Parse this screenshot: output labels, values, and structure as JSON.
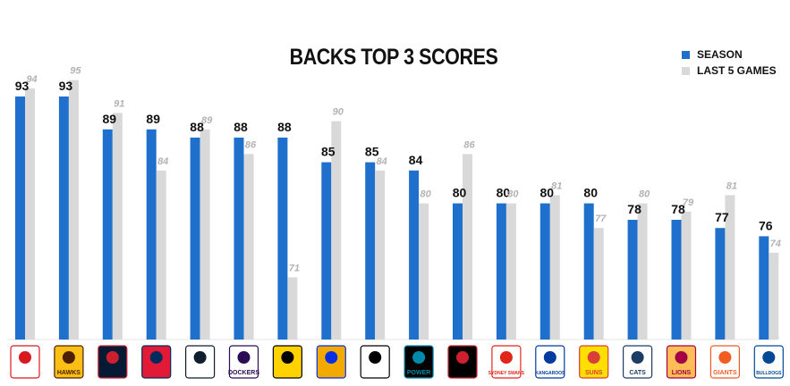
{
  "chart_data": {
    "type": "bar",
    "title": "BACKS TOP 3 SCORES",
    "categories": [
      "St Kilda",
      "Hawthorn",
      "Melbourne",
      "Adelaide",
      "Carlton",
      "Fremantle",
      "Richmond",
      "West Coast",
      "Collingwood",
      "Port Adelaide",
      "Essendon",
      "Sydney",
      "North Melbourne",
      "Gold Coast",
      "Geelong",
      "Brisbane",
      "GWS",
      "Western Bulldogs"
    ],
    "series": [
      {
        "name": "SEASON",
        "color": "#1f6fcc",
        "values": [
          93,
          93,
          89,
          89,
          88,
          88,
          88,
          85,
          85,
          84,
          80,
          80,
          80,
          80,
          78,
          78,
          77,
          76
        ]
      },
      {
        "name": "LAST 5 GAMES",
        "color": "#d9d9d9",
        "values": [
          94,
          95,
          91,
          84,
          89,
          86,
          71,
          90,
          84,
          80,
          86,
          80,
          81,
          77,
          80,
          79,
          81,
          74
        ]
      }
    ],
    "season_label_color": "#111111",
    "last5_label_color": "#b3b3b3",
    "grid": false,
    "legend_position": "top-right",
    "logos": [
      {
        "name": "st-kilda-logo",
        "text": "",
        "color": "#d71920",
        "bg": "#ffffff"
      },
      {
        "name": "hawthorn-logo",
        "text": "HAWKS",
        "color": "#4d2004",
        "bg": "#fbbf15"
      },
      {
        "name": "melbourne-logo",
        "text": "",
        "color": "#cc2031",
        "bg": "#061a33"
      },
      {
        "name": "adelaide-logo",
        "text": "",
        "color": "#002b5c",
        "bg": "#e21937"
      },
      {
        "name": "carlton-logo",
        "text": "",
        "color": "#0e1e2d",
        "bg": "#ffffff"
      },
      {
        "name": "fremantle-logo",
        "text": "DOCKERS",
        "color": "#2a0d54",
        "bg": "#ffffff"
      },
      {
        "name": "richmond-logo",
        "text": "",
        "color": "#000000",
        "bg": "#ffd200"
      },
      {
        "name": "west-coast-logo",
        "text": "",
        "color": "#062ee2",
        "bg": "#f2a900"
      },
      {
        "name": "collingwood-logo",
        "text": "",
        "color": "#000000",
        "bg": "#ffffff"
      },
      {
        "name": "port-adelaide-logo",
        "text": "POWER",
        "color": "#008aab",
        "bg": "#000000"
      },
      {
        "name": "essendon-logo",
        "text": "",
        "color": "#cc2031",
        "bg": "#000000"
      },
      {
        "name": "sydney-logo",
        "text": "SYDNEY SWANS",
        "color": "#e1251b",
        "bg": "#ffffff"
      },
      {
        "name": "north-melbourne-logo",
        "text": "KANGAROOS",
        "color": "#013b9f",
        "bg": "#ffffff"
      },
      {
        "name": "gold-coast-logo",
        "text": "SUNS",
        "color": "#d93e39",
        "bg": "#ffdf00"
      },
      {
        "name": "geelong-logo",
        "text": "CATS",
        "color": "#1c3c63",
        "bg": "#ffffff"
      },
      {
        "name": "brisbane-logo",
        "text": "LIONS",
        "color": "#a30046",
        "bg": "#fdbe57"
      },
      {
        "name": "gws-logo",
        "text": "GIANTS",
        "color": "#f15c22",
        "bg": "#ffffff"
      },
      {
        "name": "western-bulldogs-logo",
        "text": "BULLDOGS",
        "color": "#014896",
        "bg": "#ffffff"
      }
    ]
  }
}
